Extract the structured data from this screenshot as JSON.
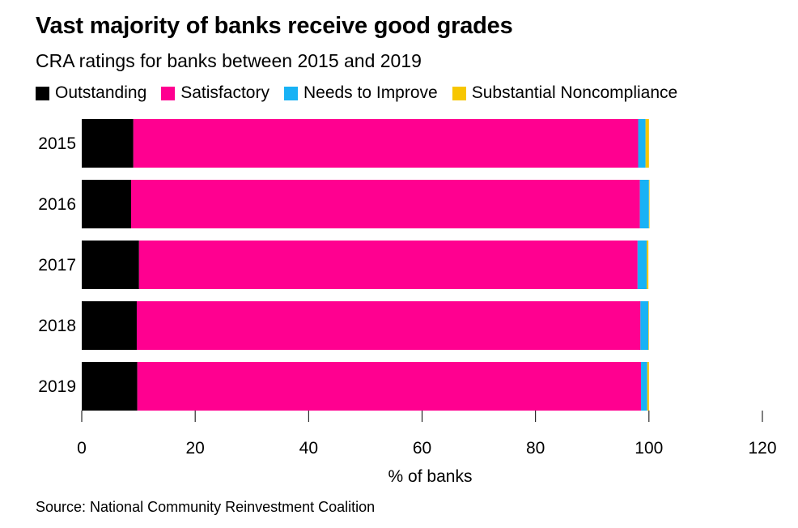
{
  "header": {
    "title": "Vast majority of banks receive good grades",
    "subtitle": "CRA ratings for banks between 2015 and 2019"
  },
  "footer": {
    "source": "Source: National Community Reinvestment Coalition"
  },
  "colors": {
    "Outstanding": "#000000",
    "Satisfactory": "#ff0090",
    "Needs to Improve": "#18b2f5",
    "Substantial Noncompliance": "#f7c600"
  },
  "chart_data": {
    "type": "bar",
    "orientation": "horizontal",
    "stacked": true,
    "title": "Vast majority of banks receive good grades",
    "subtitle": "CRA ratings for banks between 2015 and 2019",
    "categories": [
      "2015",
      "2016",
      "2017",
      "2018",
      "2019"
    ],
    "series": [
      {
        "name": "Outstanding",
        "color": "#000000",
        "values": [
          9.1,
          8.7,
          10.1,
          9.7,
          9.8
        ]
      },
      {
        "name": "Satisfactory",
        "color": "#ff0090",
        "values": [
          89.0,
          89.7,
          87.9,
          88.8,
          88.8
        ]
      },
      {
        "name": "Needs to Improve",
        "color": "#18b2f5",
        "values": [
          1.3,
          1.6,
          1.6,
          1.4,
          1.1
        ]
      },
      {
        "name": "Substantial Noncompliance",
        "color": "#f7c600",
        "values": [
          0.6,
          0.1,
          0.3,
          0.1,
          0.3
        ]
      }
    ],
    "xlabel": "% of banks",
    "ylabel": "",
    "xlim": [
      0,
      120
    ],
    "xticks": [
      0,
      20,
      40,
      60,
      80,
      100,
      120
    ],
    "grid": false,
    "legend": "top-left"
  }
}
